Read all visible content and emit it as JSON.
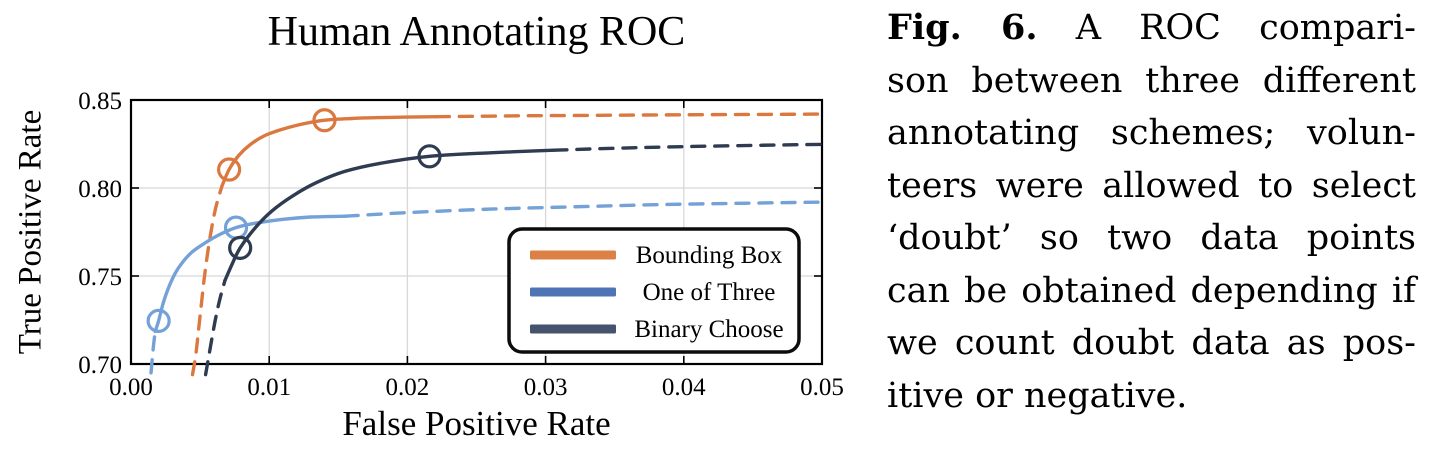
{
  "caption": {
    "label": "Fig. 6.",
    "lines": [
      "A ROC compari-",
      "son between three different",
      "annotating schemes; volun-",
      "teers were allowed to select",
      "‘doubt’ so two data points",
      "can be obtained depending if",
      "we count doubt data as pos-",
      "itive or negative."
    ]
  },
  "chart_data": {
    "type": "line",
    "title": "Human Annotating ROC",
    "xlabel": "False Positive Rate",
    "ylabel": "True Positive Rate",
    "xlim": [
      0.0,
      0.05
    ],
    "ylim": [
      0.7,
      0.85
    ],
    "xticks": [
      0.0,
      0.01,
      0.02,
      0.03,
      0.04,
      0.05
    ],
    "xtick_labels": [
      "0.00",
      "0.01",
      "0.02",
      "0.03",
      "0.04",
      "0.05"
    ],
    "yticks": [
      0.7,
      0.75,
      0.8,
      0.85
    ],
    "ytick_labels": [
      "0.70",
      "0.75",
      "0.80",
      "0.85"
    ],
    "grid": true,
    "grid_color": "#d8d8d8",
    "frame_color": "#000000",
    "legend_position": "lower right",
    "series": [
      {
        "name": "Bounding Box",
        "color": "#db7840",
        "legend_color": "#dd8046",
        "markers": [
          [
            0.0071,
            0.8105
          ],
          [
            0.014,
            0.8385
          ]
        ],
        "dashed_low": [
          [
            0.00445,
            0.694
          ],
          [
            0.0047,
            0.706
          ],
          [
            0.005,
            0.7275
          ],
          [
            0.0053,
            0.7485
          ],
          [
            0.0056,
            0.766
          ],
          [
            0.0059,
            0.78
          ],
          [
            0.0062,
            0.791
          ],
          [
            0.0066,
            0.8015
          ]
        ],
        "solid": [
          [
            0.0066,
            0.8015
          ],
          [
            0.0071,
            0.8105
          ],
          [
            0.0078,
            0.8185
          ],
          [
            0.0086,
            0.8245
          ],
          [
            0.0096,
            0.8295
          ],
          [
            0.0108,
            0.833
          ],
          [
            0.0122,
            0.836
          ],
          [
            0.014,
            0.8385
          ],
          [
            0.016,
            0.8395
          ],
          [
            0.018,
            0.84
          ],
          [
            0.02,
            0.8403
          ],
          [
            0.0221,
            0.8405
          ]
        ],
        "dashed_high": [
          [
            0.0221,
            0.8405
          ],
          [
            0.028,
            0.841
          ],
          [
            0.034,
            0.8413
          ],
          [
            0.04,
            0.8416
          ],
          [
            0.046,
            0.8418
          ],
          [
            0.05,
            0.842
          ]
        ]
      },
      {
        "name": "One of Three",
        "color": "#74a1d8",
        "legend_color": "#4f74b5",
        "markers": [
          [
            0.002,
            0.7245
          ],
          [
            0.0076,
            0.7775
          ]
        ],
        "dashed_low": [
          [
            0.00145,
            0.695
          ],
          [
            0.00155,
            0.704
          ],
          [
            0.00165,
            0.712
          ],
          [
            0.00175,
            0.7185
          ]
        ],
        "solid": [
          [
            0.00175,
            0.7185
          ],
          [
            0.002,
            0.7245
          ],
          [
            0.0024,
            0.7365
          ],
          [
            0.003,
            0.7485
          ],
          [
            0.0036,
            0.7565
          ],
          [
            0.0044,
            0.7635
          ],
          [
            0.0054,
            0.769
          ],
          [
            0.0064,
            0.7735
          ],
          [
            0.0076,
            0.7775
          ],
          [
            0.009,
            0.78
          ],
          [
            0.011,
            0.7822
          ],
          [
            0.013,
            0.7835
          ],
          [
            0.0155,
            0.784
          ]
        ],
        "dashed_high": [
          [
            0.0155,
            0.784
          ],
          [
            0.02,
            0.786
          ],
          [
            0.026,
            0.788
          ],
          [
            0.032,
            0.7893
          ],
          [
            0.038,
            0.7905
          ],
          [
            0.044,
            0.7913
          ],
          [
            0.05,
            0.792
          ]
        ]
      },
      {
        "name": "Binary Choose",
        "color": "#2e3b50",
        "legend_color": "#46536e",
        "markers": [
          [
            0.0079,
            0.766
          ],
          [
            0.0216,
            0.818
          ]
        ],
        "dashed_low": [
          [
            0.0054,
            0.694
          ],
          [
            0.0056,
            0.703
          ],
          [
            0.0059,
            0.7165
          ],
          [
            0.0062,
            0.729
          ],
          [
            0.0065,
            0.739
          ],
          [
            0.0068,
            0.7475
          ]
        ],
        "solid": [
          [
            0.0068,
            0.7475
          ],
          [
            0.0073,
            0.7565
          ],
          [
            0.0079,
            0.766
          ],
          [
            0.009,
            0.7775
          ],
          [
            0.0102,
            0.787
          ],
          [
            0.0117,
            0.7955
          ],
          [
            0.0134,
            0.803
          ],
          [
            0.0155,
            0.8095
          ],
          [
            0.018,
            0.814
          ],
          [
            0.0216,
            0.818
          ],
          [
            0.026,
            0.82
          ],
          [
            0.0306,
            0.8215
          ]
        ],
        "dashed_high": [
          [
            0.0306,
            0.8215
          ],
          [
            0.036,
            0.8228
          ],
          [
            0.042,
            0.8238
          ],
          [
            0.05,
            0.8248
          ]
        ]
      }
    ]
  }
}
